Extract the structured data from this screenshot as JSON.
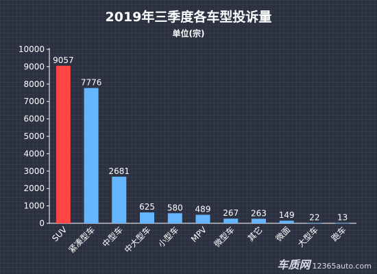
{
  "chart_data": {
    "type": "bar",
    "title": "2019年三季度各车型投诉量",
    "subtitle": "单位(宗)",
    "categories": [
      "SUV",
      "紧凑型车",
      "中型车",
      "中大型车",
      "小型车",
      "MPV",
      "微型车",
      "其它",
      "微面",
      "大型车",
      "跑车"
    ],
    "values": [
      9057,
      7776,
      2681,
      625,
      580,
      489,
      267,
      263,
      149,
      22,
      13
    ],
    "ylim": [
      0,
      10000
    ],
    "yticks": [
      0,
      1000,
      2000,
      3000,
      4000,
      5000,
      6000,
      7000,
      8000,
      9000,
      10000
    ],
    "grid": false,
    "highlight_color": "#ff4545",
    "bar_color": "#66b6ff",
    "highlight_index": 0
  },
  "watermark": {
    "brand": "车质网",
    "site": "12365auto.com"
  }
}
